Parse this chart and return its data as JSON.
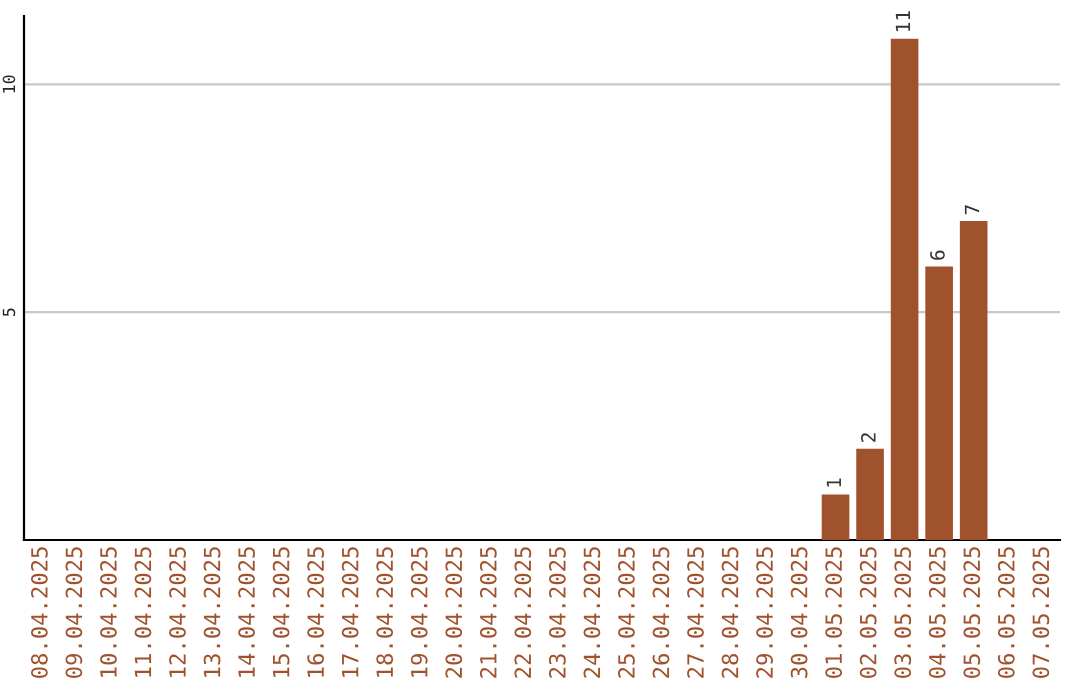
{
  "chart_data": {
    "type": "bar",
    "categories": [
      "08.04.2025",
      "09.04.2025",
      "10.04.2025",
      "11.04.2025",
      "12.04.2025",
      "13.04.2025",
      "14.04.2025",
      "15.04.2025",
      "16.04.2025",
      "17.04.2025",
      "18.04.2025",
      "19.04.2025",
      "20.04.2025",
      "21.04.2025",
      "22.04.2025",
      "23.04.2025",
      "24.04.2025",
      "25.04.2025",
      "26.04.2025",
      "27.04.2025",
      "28.04.2025",
      "29.04.2025",
      "30.04.2025",
      "01.05.2025",
      "02.05.2025",
      "03.05.2025",
      "04.05.2025",
      "05.05.2025",
      "06.05.2025",
      "07.05.2025"
    ],
    "values": [
      0,
      0,
      0,
      0,
      0,
      0,
      0,
      0,
      0,
      0,
      0,
      0,
      0,
      0,
      0,
      0,
      0,
      0,
      0,
      0,
      0,
      0,
      0,
      1,
      2,
      11,
      6,
      7,
      0,
      0
    ],
    "value_labels": [
      null,
      null,
      null,
      null,
      null,
      null,
      null,
      null,
      null,
      null,
      null,
      null,
      null,
      null,
      null,
      null,
      null,
      null,
      null,
      null,
      null,
      null,
      null,
      "1",
      "2",
      "11",
      "6",
      "7",
      null,
      null
    ],
    "color": "#a0522d",
    "ylim": [
      0,
      11.5
    ],
    "yticks": [
      5,
      10
    ],
    "grid": "y",
    "legend": false
  }
}
